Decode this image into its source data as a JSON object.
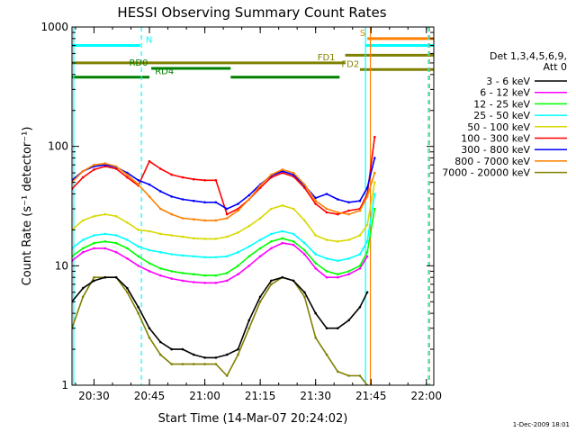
{
  "footer_date": "1-Dec-2009 18:01",
  "chart_data": {
    "type": "line",
    "title": "HESSI Observing Summary Count Rates",
    "xlabel": "Start Time (14-Mar-07 20:24:02)",
    "ylabel": "Count Rate (s⁻¹ detector⁻¹)",
    "y_scale": "log",
    "ylim": [
      1,
      1000
    ],
    "xlim": [
      "20:24:02",
      "22:02:00"
    ],
    "x_ticks": [
      "20:30",
      "20:45",
      "21:00",
      "21:15",
      "21:30",
      "21:45",
      "22:00"
    ],
    "y_ticks": [
      "1",
      "10",
      "100",
      "1000"
    ],
    "legend": {
      "title_line1": "Det 1,3,4,5,6,9,",
      "title_line2": "Att 0",
      "placement": "right",
      "entries": [
        {
          "label": "3 - 6 keV",
          "color": "#000000"
        },
        {
          "label": "6 - 12 keV",
          "color": "#ff00ff"
        },
        {
          "label": "12 - 25 keV",
          "color": "#00ff00"
        },
        {
          "label": "25 - 50 keV",
          "color": "#00ffff"
        },
        {
          "label": "50 - 100 keV",
          "color": "#d8d800"
        },
        {
          "label": "100 - 300 keV",
          "color": "#ff0000"
        },
        {
          "label": "300 - 800 keV",
          "color": "#0000ff"
        },
        {
          "label": "800 - 7000 keV",
          "color": "#ff8000"
        },
        {
          "label": "7000 - 20000 keV",
          "color": "#808000"
        }
      ]
    },
    "time_axis": [
      "20:24",
      "20:27",
      "20:30",
      "20:33",
      "20:36",
      "20:39",
      "20:42",
      "20:45",
      "20:48",
      "20:51",
      "20:54",
      "20:57",
      "21:00",
      "21:03",
      "21:06",
      "21:09",
      "21:12",
      "21:15",
      "21:18",
      "21:21",
      "21:24",
      "21:27",
      "21:30",
      "21:33",
      "21:36",
      "21:39",
      "21:42",
      "21:44",
      "21:46"
    ],
    "series": [
      {
        "name": "7000 - 20000 keV",
        "color": "#808000",
        "values": [
          3,
          5.5,
          8,
          8,
          8,
          6,
          4,
          2.5,
          1.8,
          1.5,
          1.5,
          1.5,
          1.5,
          1.5,
          1.2,
          1.8,
          3,
          5,
          7,
          8,
          7.5,
          5.5,
          2.5,
          1.8,
          1.3,
          1.2,
          1.2,
          1,
          null
        ]
      },
      {
        "name": "3 - 6 keV",
        "color": "#000000",
        "values": [
          5,
          6.5,
          7.5,
          8,
          8,
          6.5,
          4.5,
          3,
          2.3,
          2,
          2,
          1.8,
          1.7,
          1.7,
          1.8,
          2,
          3.5,
          5.5,
          7.5,
          8,
          7.5,
          6,
          4,
          3,
          3,
          3.5,
          4.5,
          6,
          null
        ]
      },
      {
        "name": "6 - 12 keV",
        "color": "#ff00ff",
        "values": [
          11,
          13,
          14,
          14,
          13,
          11.5,
          10,
          9,
          8.3,
          7.8,
          7.5,
          7.3,
          7.2,
          7.2,
          7.5,
          8.5,
          10,
          12,
          14,
          15.5,
          15,
          12.5,
          9.5,
          8,
          8,
          8.5,
          9.5,
          12,
          null
        ]
      },
      {
        "name": "12 - 25 keV",
        "color": "#00ff00",
        "values": [
          12,
          14,
          15.5,
          16,
          15.5,
          14,
          12,
          10.5,
          9.5,
          9,
          8.7,
          8.5,
          8.3,
          8.3,
          8.7,
          10,
          12,
          14,
          16,
          17,
          16,
          13.5,
          10.5,
          9,
          8.5,
          9,
          10,
          13,
          30
        ]
      },
      {
        "name": "25 - 50 keV",
        "color": "#00ffff",
        "values": [
          14,
          16.5,
          18,
          18.5,
          18,
          16.5,
          14.5,
          13.5,
          13,
          12.5,
          12.2,
          12,
          11.8,
          11.8,
          12,
          13,
          14.5,
          16.5,
          18.5,
          19.5,
          18.5,
          15.5,
          12.5,
          11.5,
          11,
          11.5,
          12.5,
          16,
          40
        ]
      },
      {
        "name": "50 - 100 keV",
        "color": "#d8d800",
        "values": [
          20,
          24,
          26,
          27,
          26,
          23,
          20,
          19.5,
          18.5,
          18,
          17.5,
          17,
          16.8,
          16.8,
          17.5,
          19,
          21.5,
          25,
          30,
          32,
          30,
          24,
          18,
          16.5,
          16,
          16.5,
          18,
          22,
          50
        ]
      },
      {
        "name": "100 - 300 keV",
        "color": "#ff0000",
        "values": [
          44,
          55,
          64,
          68,
          65,
          55,
          47,
          75,
          65,
          58,
          55,
          53,
          52,
          52,
          27,
          30,
          36,
          45,
          55,
          60,
          56,
          45,
          33,
          28,
          27,
          29,
          30,
          40,
          120
        ]
      },
      {
        "name": "300 - 800 keV",
        "color": "#0000ff",
        "values": [
          52,
          62,
          68,
          70,
          67,
          60,
          52,
          48,
          42,
          38,
          36,
          35,
          34,
          34,
          30,
          33,
          39,
          48,
          57,
          62,
          58,
          47,
          37,
          40,
          36,
          34,
          35,
          45,
          80
        ]
      },
      {
        "name": "800 - 7000 keV",
        "color": "#ff8000",
        "values": [
          50,
          62,
          70,
          72,
          68,
          58,
          48,
          38,
          30,
          27,
          25,
          24.5,
          24,
          24,
          25,
          29,
          36,
          47,
          58,
          64,
          60,
          48,
          35,
          30,
          28,
          27,
          29,
          38,
          60
        ]
      }
    ],
    "observing_flags": [
      {
        "label": "",
        "color": "#00ffff",
        "y": 700,
        "segments": [
          [
            "20:24:02",
            "20:42:30"
          ]
        ]
      },
      {
        "label": "N",
        "color": "#00ffff",
        "y": 700,
        "label_at": "20:44:00",
        "segments": []
      },
      {
        "label": "RD0",
        "color": "#008000",
        "y": 450,
        "label_at": "20:39:30",
        "segments": [
          [
            "20:45:30",
            "21:07:00"
          ]
        ]
      },
      {
        "label": "RD4",
        "color": "#008000",
        "y": 380,
        "label_at": "20:46:30",
        "segments": [
          [
            "20:24:02",
            "20:45:00"
          ],
          [
            "21:07:00",
            "21:36:30"
          ]
        ]
      },
      {
        "label": "FD1",
        "color": "#808000",
        "y": 500,
        "label_at": "21:30:30",
        "segments": [
          [
            "20:24:02",
            "21:38:00"
          ]
        ]
      },
      {
        "label": "FD2",
        "color": "#808000",
        "y": 440,
        "label_at": "21:37:00",
        "segments": [
          [
            "21:42:00",
            "22:02:00"
          ]
        ]
      },
      {
        "label": "",
        "color": "#808000",
        "y": 580,
        "segments": [
          [
            "21:38:00",
            "22:02:00"
          ]
        ]
      },
      {
        "label": "S",
        "color": "#ff8000",
        "y": 800,
        "label_at": "21:42:00",
        "segments": [
          [
            "21:44:00",
            "22:02:00"
          ]
        ]
      },
      {
        "label": "",
        "color": "#00ffff",
        "y": 700,
        "segments": [
          [
            "21:43:30",
            "22:02:00"
          ]
        ]
      }
    ],
    "vertical_markers": [
      {
        "time": "20:24:30",
        "color": "#00ffff",
        "style": "solid"
      },
      {
        "time": "20:42:50",
        "color": "#00ffff",
        "style": "dashed"
      },
      {
        "time": "21:43:30",
        "color": "#00ffff",
        "style": "solid"
      },
      {
        "time": "21:44:50",
        "color": "#ff8000",
        "style": "solid"
      },
      {
        "time": "22:00:30",
        "color": "#00ffff",
        "style": "dashed"
      },
      {
        "time": "22:00:50",
        "color": "#ff8000",
        "style": "dashed"
      }
    ]
  }
}
